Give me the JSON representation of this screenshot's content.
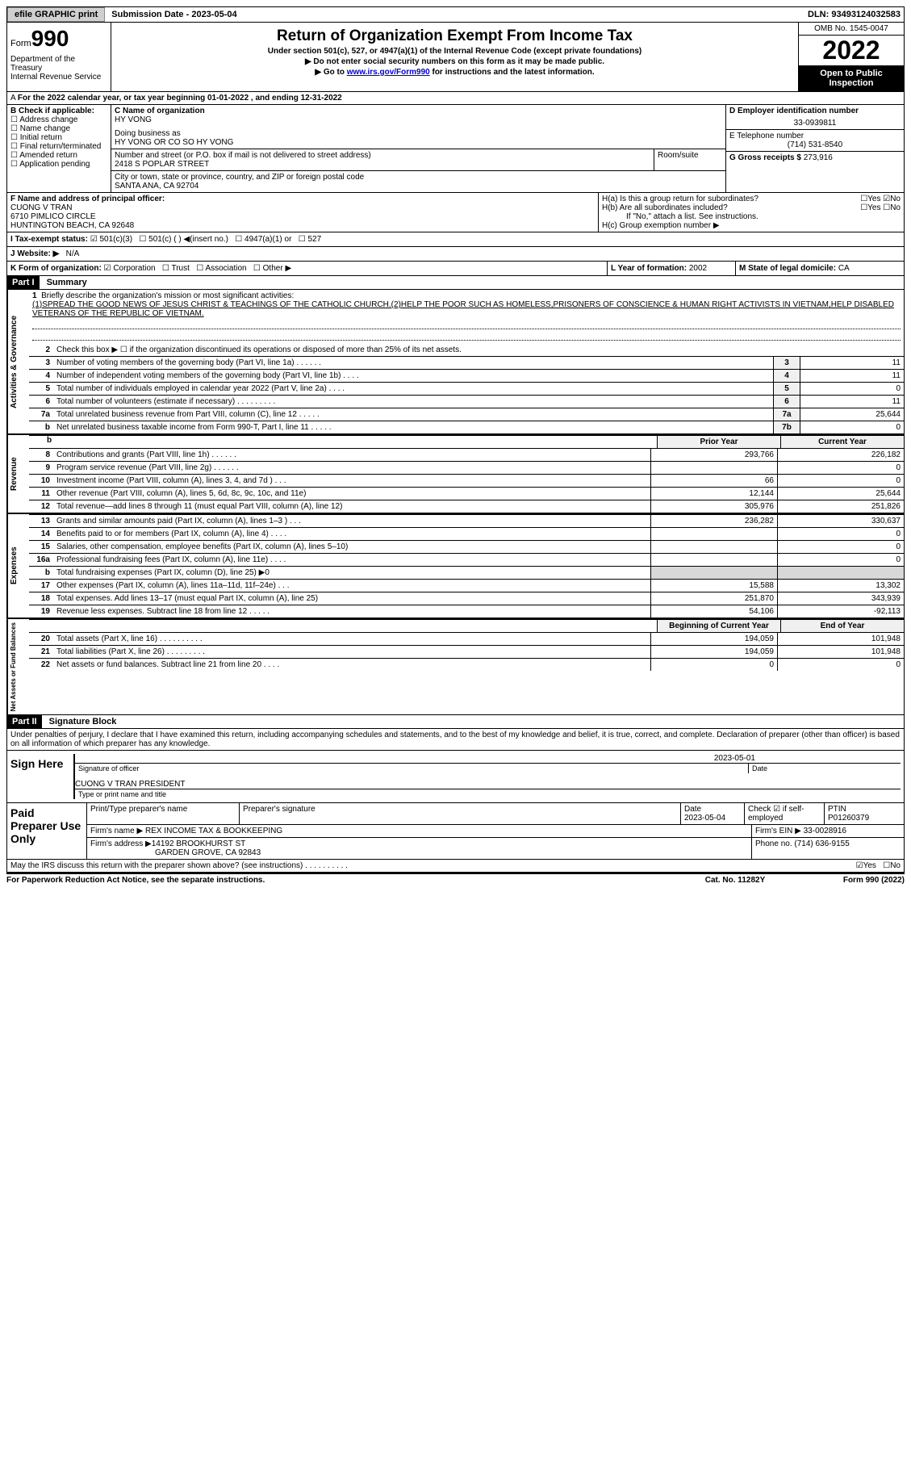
{
  "topbar": {
    "efile": "efile GRAPHIC print",
    "subm_label": "Submission Date - ",
    "subm_date": "2023-05-04",
    "dln_label": "DLN: ",
    "dln": "93493124032583"
  },
  "header": {
    "form_word": "Form",
    "form_no": "990",
    "dept": "Department of the Treasury\nInternal Revenue Service",
    "title": "Return of Organization Exempt From Income Tax",
    "sub": "Under section 501(c), 527, or 4947(a)(1) of the Internal Revenue Code (except private foundations)",
    "arrow1": "Do not enter social security numbers on this form as it may be made public.",
    "arrow2_pre": "Go to ",
    "arrow2_link": "www.irs.gov/Form990",
    "arrow2_post": " for instructions and the latest information.",
    "omb": "OMB No. 1545-0047",
    "year": "2022",
    "open_pub": "Open to Public Inspection"
  },
  "line_a": "For the 2022 calendar year, or tax year beginning 01-01-2022   , and ending 12-31-2022",
  "b": {
    "label": "B Check if applicable:",
    "opts": [
      "Address change",
      "Name change",
      "Initial return",
      "Final return/terminated",
      "Amended return",
      "Application pending"
    ]
  },
  "c": {
    "name_label": "C Name of organization",
    "name": "HY VONG",
    "dba_label": "Doing business as",
    "dba": "HY VONG OR CO SO HY VONG",
    "street_label": "Number and street (or P.O. box if mail is not delivered to street address)",
    "street": "2418 S POPLAR STREET",
    "room_label": "Room/suite",
    "city_label": "City or town, state or province, country, and ZIP or foreign postal code",
    "city": "SANTA ANA, CA  92704"
  },
  "d": {
    "label": "D Employer identification number",
    "val": "33-0939811"
  },
  "e": {
    "label": "E Telephone number",
    "val": "(714) 531-8540"
  },
  "g": {
    "label": "G Gross receipts $ ",
    "val": "273,916"
  },
  "f": {
    "label": "F Name and address of principal officer:",
    "name": "CUONG V TRAN",
    "addr1": "6710 PIMLICO CIRCLE",
    "addr2": "HUNTINGTON BEACH, CA  92648"
  },
  "h": {
    "a": "H(a)  Is this a group return for subordinates?",
    "b": "H(b)  Are all subordinates included?",
    "b_note": "If \"No,\" attach a list. See instructions.",
    "c": "H(c)  Group exemption number ▶"
  },
  "i": {
    "label": "I  Tax-exempt status:",
    "o1": "501(c)(3)",
    "o2": "501(c) (  ) ◀(insert no.)",
    "o3": "4947(a)(1) or",
    "o4": "527"
  },
  "j": {
    "label": "J  Website: ▶",
    "val": "N/A"
  },
  "k": {
    "label": "K Form of organization:",
    "o1": "Corporation",
    "o2": "Trust",
    "o3": "Association",
    "o4": "Other ▶"
  },
  "l": {
    "label": "L Year of formation: ",
    "val": "2002"
  },
  "m": {
    "label": "M State of legal domicile: ",
    "val": "CA"
  },
  "part1": {
    "hdr": "Part I",
    "title": "Summary",
    "mission_label": "Briefly describe the organization's mission or most significant activities:",
    "mission": "(1)SPREAD THE GOOD NEWS OF JESUS CHRIST & TEACHINGS OF THE CATHOLIC CHURCH.(2)HELP THE POOR SUCH AS HOMELESS,PRISONERS OF CONSCIENCE & HUMAN RIGHT ACTIVISTS IN VIETNAM,HELP DISABLED VETERANS OF THE REPUBLIC OF VIETNAM.",
    "line2": "Check this box ▶ ☐ if the organization discontinued its operations or disposed of more than 25% of its net assets.",
    "rows_single": [
      {
        "n": "3",
        "t": "Number of voting members of the governing body (Part VI, line 1a)   .    .    .    .    .    .",
        "box": "3",
        "v": "11"
      },
      {
        "n": "4",
        "t": "Number of independent voting members of the governing body (Part VI, line 1b)   .    .    .    .",
        "box": "4",
        "v": "11"
      },
      {
        "n": "5",
        "t": "Total number of individuals employed in calendar year 2022 (Part V, line 2a)   .    .    .    .",
        "box": "5",
        "v": "0"
      },
      {
        "n": "6",
        "t": "Total number of volunteers (estimate if necessary)   .    .    .    .    .    .    .    .    .",
        "box": "6",
        "v": "11"
      },
      {
        "n": "7a",
        "t": "Total unrelated business revenue from Part VIII, column (C), line 12   .    .    .    .    .",
        "box": "7a",
        "v": "25,644"
      },
      {
        "n": "b",
        "t": "Net unrelated business taxable income from Form 990-T, Part I, line 11   .    .    .    .    .",
        "box": "7b",
        "v": "0"
      }
    ],
    "col_prior": "Prior Year",
    "col_curr": "Current Year",
    "revenue": [
      {
        "n": "8",
        "t": "Contributions and grants (Part VIII, line 1h)   .    .    .    .    .    .",
        "p": "293,766",
        "c": "226,182"
      },
      {
        "n": "9",
        "t": "Program service revenue (Part VIII, line 2g)   .    .    .    .    .    .",
        "p": "",
        "c": "0"
      },
      {
        "n": "10",
        "t": "Investment income (Part VIII, column (A), lines 3, 4, and 7d )   .    .    .",
        "p": "66",
        "c": "0"
      },
      {
        "n": "11",
        "t": "Other revenue (Part VIII, column (A), lines 5, 6d, 8c, 9c, 10c, and 11e)",
        "p": "12,144",
        "c": "25,644"
      },
      {
        "n": "12",
        "t": "Total revenue—add lines 8 through 11 (must equal Part VIII, column (A), line 12)",
        "p": "305,976",
        "c": "251,826"
      }
    ],
    "expenses": [
      {
        "n": "13",
        "t": "Grants and similar amounts paid (Part IX, column (A), lines 1–3 )   .    .    .",
        "p": "236,282",
        "c": "330,637"
      },
      {
        "n": "14",
        "t": "Benefits paid to or for members (Part IX, column (A), line 4)   .    .    .    .",
        "p": "",
        "c": "0"
      },
      {
        "n": "15",
        "t": "Salaries, other compensation, employee benefits (Part IX, column (A), lines 5–10)",
        "p": "",
        "c": "0"
      },
      {
        "n": "16a",
        "t": "Professional fundraising fees (Part IX, column (A), line 11e)   .    .    .    .",
        "p": "",
        "c": "0"
      },
      {
        "n": "b",
        "t": "Total fundraising expenses (Part IX, column (D), line 25) ▶0",
        "p": "__shade__",
        "c": "__shade__"
      },
      {
        "n": "17",
        "t": "Other expenses (Part IX, column (A), lines 11a–11d, 11f–24e)   .    .    .",
        "p": "15,588",
        "c": "13,302"
      },
      {
        "n": "18",
        "t": "Total expenses. Add lines 13–17 (must equal Part IX, column (A), line 25)",
        "p": "251,870",
        "c": "343,939"
      },
      {
        "n": "19",
        "t": "Revenue less expenses. Subtract line 18 from line 12   .    .    .    .    .",
        "p": "54,106",
        "c": "-92,113"
      }
    ],
    "col_begin": "Beginning of Current Year",
    "col_end": "End of Year",
    "net": [
      {
        "n": "20",
        "t": "Total assets (Part X, line 16)   .    .    .    .    .    .    .    .    .    .",
        "p": "194,059",
        "c": "101,948"
      },
      {
        "n": "21",
        "t": "Total liabilities (Part X, line 26)   .    .    .    .    .    .    .    .    .",
        "p": "194,059",
        "c": "101,948"
      },
      {
        "n": "22",
        "t": "Net assets or fund balances. Subtract line 21 from line 20   .    .    .    .",
        "p": "0",
        "c": "0"
      }
    ],
    "vert1": "Activities & Governance",
    "vert2": "Revenue",
    "vert3": "Expenses",
    "vert4": "Net Assets or Fund Balances"
  },
  "part2": {
    "hdr": "Part II",
    "title": "Signature Block",
    "decl": "Under penalties of perjury, I declare that I have examined this return, including accompanying schedules and statements, and to the best of my knowledge and belief, it is true, correct, and complete. Declaration of preparer (other than officer) is based on all information of which preparer has any knowledge.",
    "sign_here": "Sign Here",
    "sig_officer": "Signature of officer",
    "sig_date_lab": "Date",
    "sig_date": "2023-05-01",
    "printed": "CUONG V TRAN  PRESIDENT",
    "printed_lab": "Type or print name and title",
    "paid": "Paid Preparer Use Only",
    "prep_name_lab": "Print/Type preparer's name",
    "prep_sig_lab": "Preparer's signature",
    "prep_date_lab": "Date",
    "prep_date": "2023-05-04",
    "check_if": "Check ☑ if self-employed",
    "ptin_lab": "PTIN",
    "ptin": "P01260379",
    "firm_name_lab": "Firm's name   ▶ ",
    "firm_name": "REX INCOME TAX & BOOKKEEPING",
    "firm_ein_lab": "Firm's EIN ▶ ",
    "firm_ein": "33-0028916",
    "firm_addr_lab": "Firm's address ▶",
    "firm_addr1": "14192 BROOKHURST ST",
    "firm_addr2": "GARDEN GROVE, CA  92843",
    "phone_lab": "Phone no. ",
    "phone": "(714) 636-9155",
    "discuss": "May the IRS discuss this return with the preparer shown above? (see instructions)   .    .    .    .    .    .    .    .    .    .",
    "yes": "Yes",
    "no": "No"
  },
  "footer": {
    "pra": "For Paperwork Reduction Act Notice, see the separate instructions.",
    "cat": "Cat. No. 11282Y",
    "form": "Form 990 (2022)"
  }
}
